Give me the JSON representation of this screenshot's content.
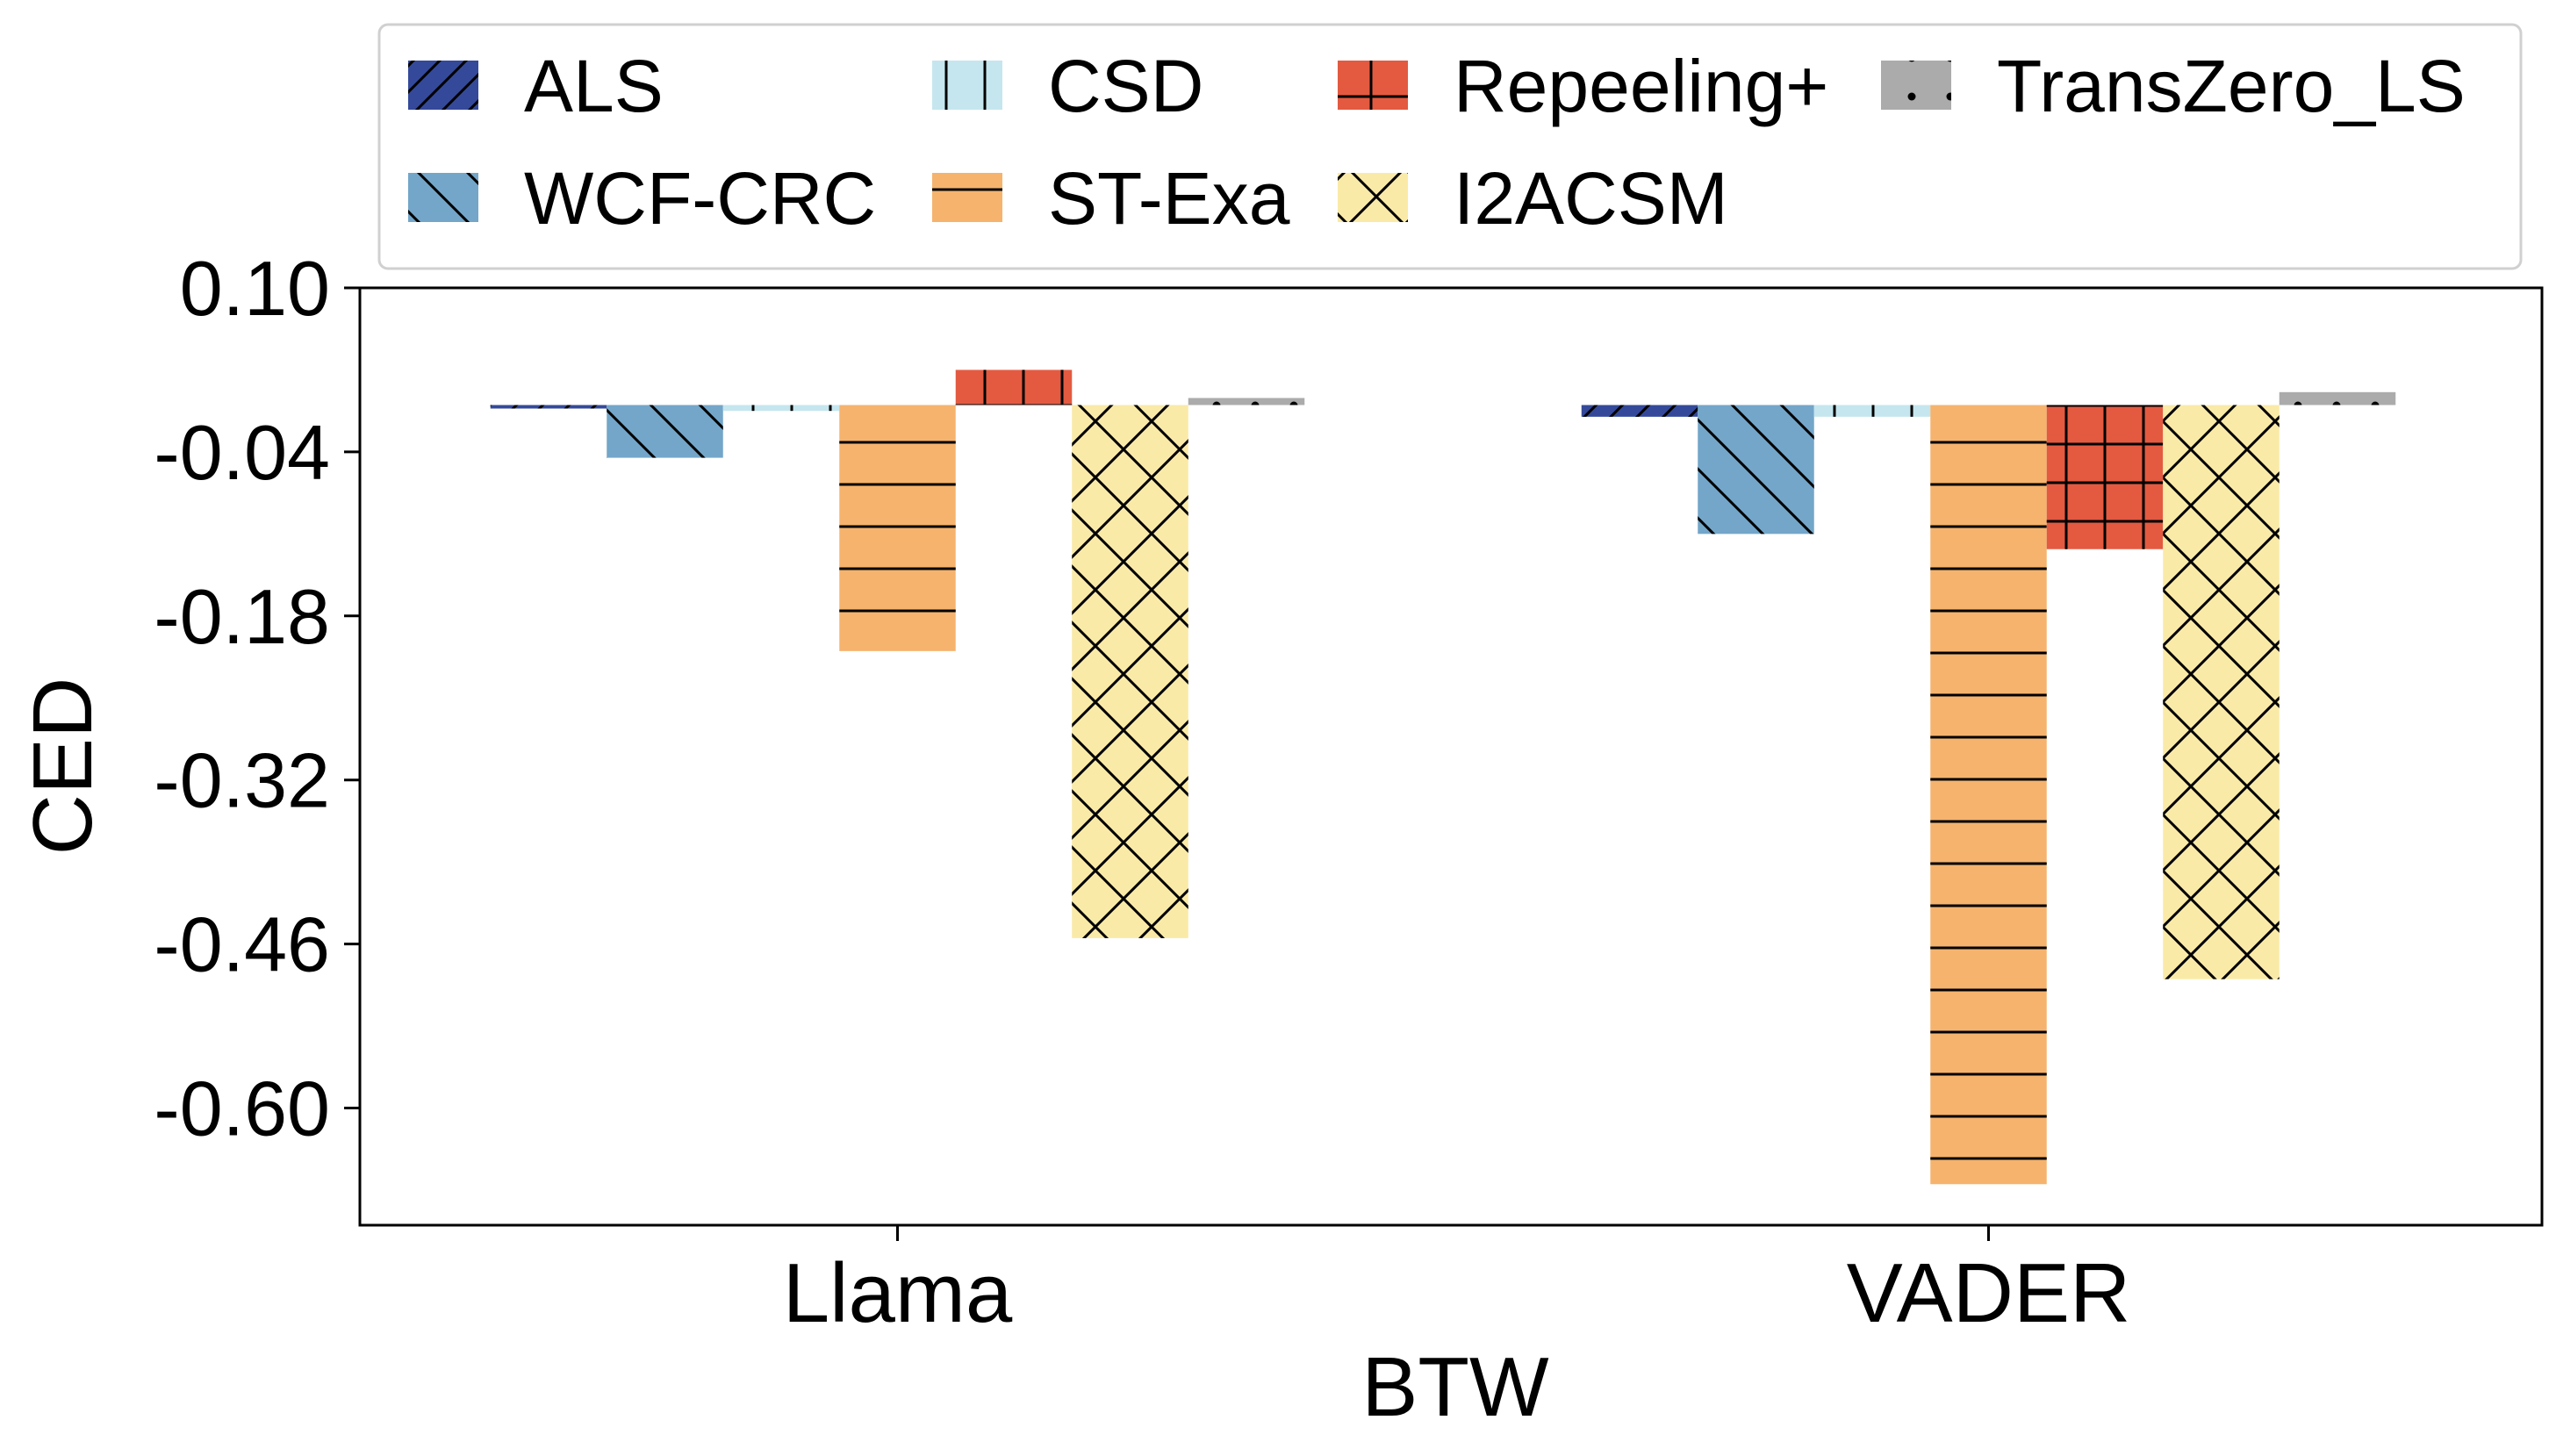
{
  "chart_data": {
    "type": "bar",
    "xlabel": "BTW",
    "ylabel": "CED",
    "categories": [
      "Llama",
      "VADER"
    ],
    "ylim": [
      -0.7,
      0.1
    ],
    "yticks": [
      "0.10",
      "-0.04",
      "-0.18",
      "-0.32",
      "-0.46",
      "-0.60"
    ],
    "ytick_values": [
      0.1,
      -0.04,
      -0.18,
      -0.32,
      -0.46,
      -0.6
    ],
    "legend_position": "top",
    "grid": false,
    "series": [
      {
        "name": "ALS",
        "color": "#34499a",
        "hatch": "slash",
        "values": [
          -0.003,
          -0.01
        ]
      },
      {
        "name": "WCF-CRC",
        "color": "#73a6c9",
        "hatch": "backslash",
        "values": [
          -0.045,
          -0.11
        ]
      },
      {
        "name": "CSD",
        "color": "#c5e6ee",
        "hatch": "vertical",
        "values": [
          -0.005,
          -0.01
        ]
      },
      {
        "name": "ST-Exa",
        "color": "#f5b36e",
        "hatch": "horizontal",
        "values": [
          -0.21,
          -0.665
        ]
      },
      {
        "name": "Repeeling+",
        "color": "#e35a41",
        "hatch": "grid",
        "values": [
          0.03,
          -0.123
        ]
      },
      {
        "name": "I2ACSM",
        "color": "#faeaa7",
        "hatch": "cross",
        "values": [
          -0.455,
          -0.49
        ]
      },
      {
        "name": "TransZero_LS",
        "color": "#ababab",
        "hatch": "dots",
        "values": [
          0.006,
          0.011
        ]
      }
    ]
  }
}
